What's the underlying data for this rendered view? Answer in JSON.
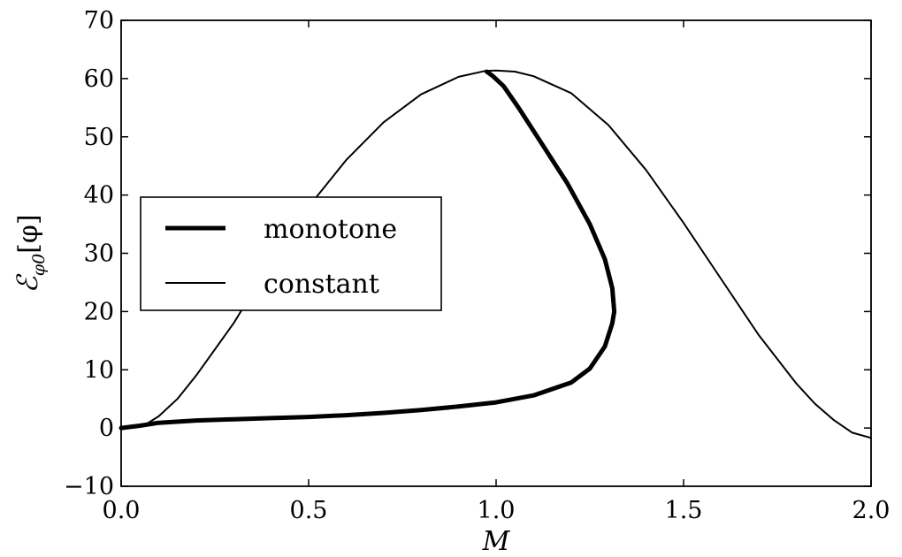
{
  "chart_data": {
    "type": "line",
    "xlabel": "M",
    "ylabel_main": "ℰ",
    "ylabel_sub": "φ0",
    "ylabel_bracket": "[φ]",
    "xlim": [
      0.0,
      2.0
    ],
    "ylim": [
      -10,
      70
    ],
    "xticks": [
      0.0,
      0.5,
      1.0,
      1.5,
      2.0
    ],
    "xtick_labels": [
      "0.0",
      "0.5",
      "1.0",
      "1.5",
      "2.0"
    ],
    "yticks": [
      -10,
      0,
      10,
      20,
      30,
      40,
      50,
      60,
      70
    ],
    "ytick_labels": [
      "−10",
      "0",
      "10",
      "20",
      "30",
      "40",
      "50",
      "60",
      "70"
    ],
    "grid": false,
    "legend_position": "center-left",
    "series": [
      {
        "name": "monotone",
        "color": "#000000",
        "style": "thick",
        "points": [
          [
            0.0,
            0.0
          ],
          [
            0.05,
            0.4
          ],
          [
            0.1,
            0.9
          ],
          [
            0.2,
            1.3
          ],
          [
            0.3,
            1.5
          ],
          [
            0.4,
            1.7
          ],
          [
            0.5,
            1.9
          ],
          [
            0.6,
            2.2
          ],
          [
            0.7,
            2.6
          ],
          [
            0.8,
            3.1
          ],
          [
            0.9,
            3.7
          ],
          [
            1.0,
            4.4
          ],
          [
            1.1,
            5.6
          ],
          [
            1.2,
            7.8
          ],
          [
            1.25,
            10.2
          ],
          [
            1.29,
            14.0
          ],
          [
            1.31,
            18.0
          ],
          [
            1.315,
            20.0
          ],
          [
            1.31,
            24.0
          ],
          [
            1.29,
            29.0
          ],
          [
            1.25,
            35.0
          ],
          [
            1.19,
            42.0
          ],
          [
            1.12,
            49.0
          ],
          [
            1.06,
            55.0
          ],
          [
            1.02,
            58.7
          ],
          [
            0.99,
            60.5
          ],
          [
            0.975,
            61.2
          ]
        ]
      },
      {
        "name": "constant",
        "color": "#000000",
        "style": "thin",
        "points": [
          [
            0.0,
            0.0
          ],
          [
            0.05,
            0.4
          ],
          [
            0.07,
            0.8
          ],
          [
            0.1,
            2.0
          ],
          [
            0.15,
            5.0
          ],
          [
            0.2,
            9.0
          ],
          [
            0.3,
            18.0
          ],
          [
            0.4,
            28.5
          ],
          [
            0.5,
            38.0
          ],
          [
            0.6,
            46.0
          ],
          [
            0.7,
            52.5
          ],
          [
            0.8,
            57.3
          ],
          [
            0.9,
            60.3
          ],
          [
            0.97,
            61.3
          ],
          [
            1.0,
            61.4
          ],
          [
            1.05,
            61.2
          ],
          [
            1.1,
            60.4
          ],
          [
            1.2,
            57.5
          ],
          [
            1.3,
            52.0
          ],
          [
            1.4,
            44.3
          ],
          [
            1.5,
            35.2
          ],
          [
            1.6,
            25.6
          ],
          [
            1.7,
            16.0
          ],
          [
            1.8,
            7.7
          ],
          [
            1.85,
            4.2
          ],
          [
            1.9,
            1.4
          ],
          [
            1.95,
            -0.8
          ],
          [
            2.0,
            -1.7
          ]
        ]
      }
    ]
  }
}
